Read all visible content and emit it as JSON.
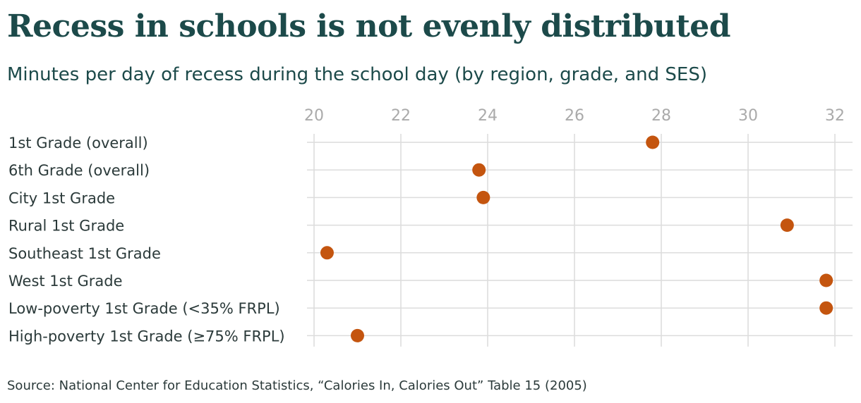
{
  "colors": {
    "title": "#1c4a4a",
    "subtitle": "#1c4a4a",
    "dot": "#c4550f",
    "grid": "#dcdcdc",
    "tick_label": "#aaaaaa",
    "category_label": "#2b3a3a"
  },
  "chart_data": {
    "type": "scatter",
    "title": "Recess in schools is not evenly distributed",
    "subtitle": "Minutes per day of recess during the school day (by region, grade, and SES)",
    "xlabel": "",
    "ylabel": "",
    "xlim": [
      20,
      32
    ],
    "xticks": [
      20,
      22,
      24,
      26,
      28,
      30,
      32
    ],
    "xtick_labels": [
      "20",
      "22",
      "24",
      "26",
      "28",
      "30",
      "32"
    ],
    "x_axis_position": "top",
    "grid": true,
    "categories": [
      "1st Grade (overall)",
      "6th Grade (overall)",
      "City 1st Grade",
      "Rural 1st Grade",
      "Southeast 1st Grade",
      "West 1st Grade",
      "Low-poverty 1st Grade (<35% FRPL)",
      "High-poverty 1st Grade (≥75% FRPL)"
    ],
    "values": [
      27.8,
      23.8,
      23.9,
      30.9,
      20.3,
      31.8,
      31.8,
      21.0
    ]
  },
  "source": "Source: National Center for Education Statistics, “Calories In, Calories Out” Table 15 (2005)"
}
